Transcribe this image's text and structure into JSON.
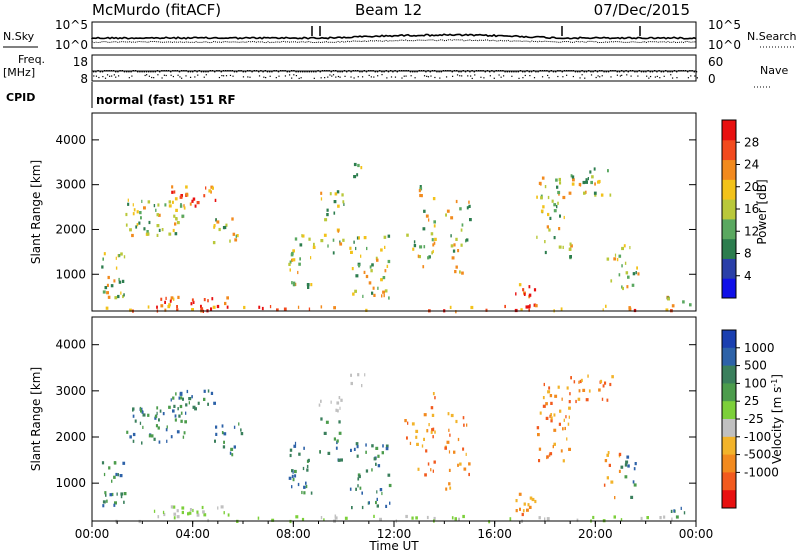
{
  "header": {
    "title": "McMurdo (fitACF)",
    "beam": "Beam 12",
    "date": "07/Dec/2015"
  },
  "noise_panel": {
    "left_label": "N.Sky",
    "right_label": "N.Search",
    "ticks_left": [
      "10^5",
      "10^0"
    ],
    "ticks_right": [
      "10^5",
      "10^0"
    ]
  },
  "freq_panel": {
    "left_label_1": "Freq.",
    "left_label_2": "[MHz]",
    "right_label": "Nave",
    "ticks_left": [
      "18",
      "8"
    ],
    "ticks_right": [
      "60",
      "0"
    ]
  },
  "cpid_panel": {
    "label": "CPID",
    "text": "normal (fast) 151 RF"
  },
  "chart_data": [
    {
      "type": "heatmap",
      "title": "",
      "xlabel": "Time UT",
      "ylabel": "Slant Range [km]",
      "xlim": [
        "00:00",
        "24:00"
      ],
      "ylim": [
        180,
        4600
      ],
      "y_ticks": [
        "1000",
        "2000",
        "3000",
        "4000"
      ],
      "x_ticks": [
        "00:00",
        "04:00",
        "08:00",
        "12:00",
        "16:00",
        "20:00",
        "00:00"
      ],
      "colorbar": {
        "label": "Power [dB]",
        "ticks": [
          "4",
          "8",
          "12",
          "16",
          "20",
          "24",
          "28"
        ],
        "colors": [
          "#1010e8",
          "#2a3fa8",
          "#2c7d4e",
          "#5aa860",
          "#b9c83a",
          "#f2c21a",
          "#f28a1e",
          "#f24a1e",
          "#e81010"
        ]
      }
    },
    {
      "type": "heatmap",
      "title": "",
      "xlabel": "Time UT",
      "ylabel": "Slant Range [km]",
      "xlim": [
        "00:00",
        "24:00"
      ],
      "ylim": [
        180,
        4600
      ],
      "y_ticks": [
        "1000",
        "2000",
        "3000",
        "4000"
      ],
      "x_ticks": [
        "00:00",
        "04:00",
        "08:00",
        "12:00",
        "16:00",
        "20:00",
        "00:00"
      ],
      "colorbar": {
        "label": "Velocity [m s^-1]",
        "ticks": [
          "1000",
          "500",
          "100",
          "25",
          "-25",
          "-100",
          "-500",
          "-1000"
        ],
        "colors": [
          "#1a3fb0",
          "#2d62a8",
          "#3a7f5c",
          "#4c9c4c",
          "#7ccf3a",
          "#c0c0c0",
          "#f2b32a",
          "#f28a1e",
          "#f25a1e",
          "#e81010"
        ]
      }
    }
  ]
}
